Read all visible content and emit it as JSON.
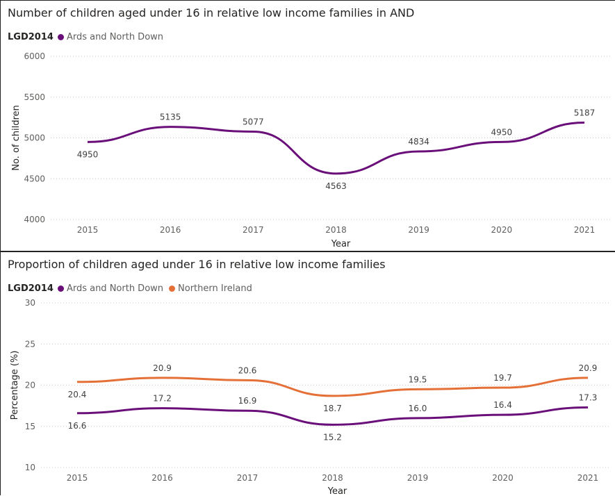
{
  "colors": {
    "and": "#6a0f7a",
    "ni": "#e47038"
  },
  "chart_data": [
    {
      "type": "line",
      "title": "Number of children aged under 16 in relative low income families in AND",
      "legend_title": "LGD2014",
      "xlabel": "Year",
      "ylabel": "No. of children",
      "x": [
        "2015",
        "2016",
        "2017",
        "2018",
        "2019",
        "2020",
        "2021"
      ],
      "ylim": [
        4000,
        6000
      ],
      "yticks": [
        4000,
        4500,
        5000,
        5500,
        6000
      ],
      "grid": true,
      "legend_position": "top-left",
      "series": [
        {
          "name": "Ards and North Down",
          "color": "#6a0f7a",
          "values": [
            4950,
            5135,
            5077,
            4563,
            4834,
            4950,
            5187
          ],
          "labels": [
            "4950",
            "5135",
            "5077",
            "4563",
            "4834",
            "4950",
            "5187"
          ]
        }
      ]
    },
    {
      "type": "line",
      "title": "Proportion of children aged under 16 in relative low income families",
      "legend_title": "LGD2014",
      "xlabel": "Year",
      "ylabel": "Percentage (%)",
      "x": [
        "2015",
        "2016",
        "2017",
        "2018",
        "2019",
        "2020",
        "2021"
      ],
      "ylim": [
        10,
        30
      ],
      "yticks": [
        10,
        15,
        20,
        25,
        30
      ],
      "grid": true,
      "legend_position": "top-left",
      "series": [
        {
          "name": "Ards and North Down",
          "color": "#6a0f7a",
          "values": [
            16.6,
            17.2,
            16.9,
            15.2,
            16.0,
            16.4,
            17.3
          ],
          "labels": [
            "16.6",
            "17.2",
            "16.9",
            "15.2",
            "16.0",
            "16.4",
            "17.3"
          ]
        },
        {
          "name": "Northern Ireland",
          "color": "#e47038",
          "values": [
            20.4,
            20.9,
            20.6,
            18.7,
            19.5,
            19.7,
            20.9
          ],
          "labels": [
            "20.4",
            "20.9",
            "20.6",
            "18.7",
            "19.5",
            "19.7",
            "20.9"
          ]
        }
      ]
    }
  ]
}
